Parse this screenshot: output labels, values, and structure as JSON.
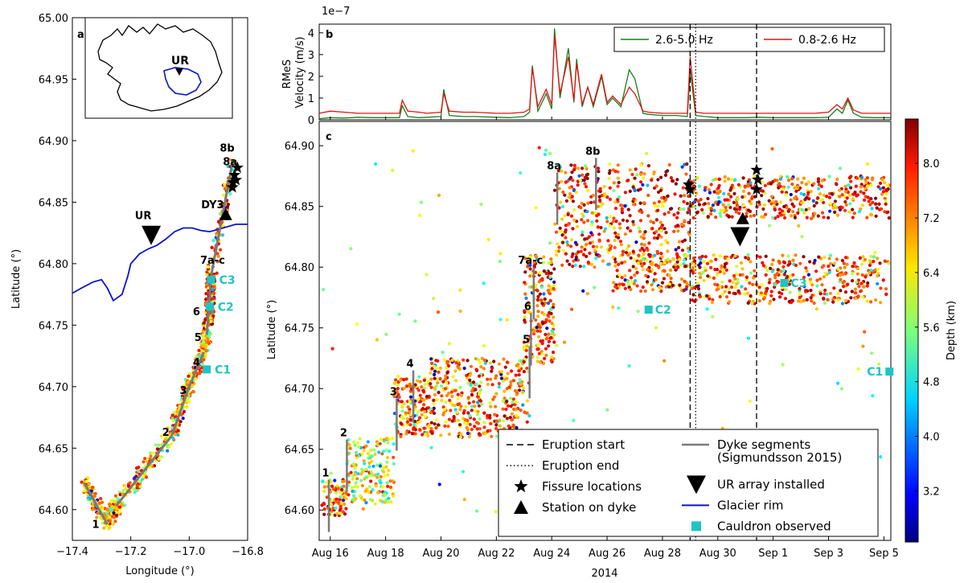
{
  "figure": {
    "colorbar_label": "Depth (km)",
    "colorbar_ticks": [
      "3.2",
      "4.0",
      "4.8",
      "5.6",
      "6.4",
      "7.2",
      "8.0"
    ],
    "colorbar_tick_values": [
      3.2,
      4.0,
      4.8,
      5.6,
      6.4,
      7.2,
      8.0
    ],
    "colorbar_range": [
      2.45,
      8.65
    ]
  },
  "chart_data": [
    {
      "panel": "a",
      "type": "map",
      "xlabel": "Longitude (°)",
      "ylabel": "Latitude (°)",
      "xlim": [
        -17.4,
        -16.8
      ],
      "ylim": [
        64.575,
        65.0
      ],
      "xticks": [
        -17.4,
        -17.2,
        -17.0,
        -16.8
      ],
      "xtick_labels": [
        "−17.4",
        "−17.2",
        "−17.0",
        "−16.8"
      ],
      "yticks": [
        64.6,
        64.65,
        64.7,
        64.75,
        64.8,
        64.85,
        64.9,
        64.95,
        65.0
      ],
      "ytick_labels": [
        "64.60",
        "64.65",
        "64.70",
        "64.75",
        "64.80",
        "64.85",
        "64.90",
        "64.95",
        "65.00"
      ],
      "inset_label": "UR",
      "dyke_segments": [
        [
          [
            -17.36,
            64.622
          ],
          [
            -17.28,
            64.588
          ]
        ],
        [
          [
            -17.25,
            64.603
          ],
          [
            -17.06,
            64.66
          ]
        ],
        [
          [
            -17.06,
            64.66
          ],
          [
            -17.0,
            64.7
          ]
        ],
        [
          [
            -17.0,
            64.7
          ],
          [
            -16.95,
            64.728
          ]
        ],
        [
          [
            -16.94,
            64.742
          ],
          [
            -16.925,
            64.79
          ]
        ],
        [
          [
            -16.925,
            64.79
          ],
          [
            -16.85,
            64.885
          ]
        ]
      ],
      "segment_labels": [
        {
          "text": "1",
          "lon": -17.32,
          "lat": 64.585
        },
        {
          "text": "2",
          "lon": -17.08,
          "lat": 64.66
        },
        {
          "text": "3",
          "lon": -17.02,
          "lat": 64.694
        },
        {
          "text": "4",
          "lon": -16.975,
          "lat": 64.717
        },
        {
          "text": "5",
          "lon": -16.97,
          "lat": 64.737
        },
        {
          "text": "6",
          "lon": -16.975,
          "lat": 64.758
        },
        {
          "text": "7a-c",
          "lon": -16.92,
          "lat": 64.8
        },
        {
          "text": "DY3",
          "lon": -16.92,
          "lat": 64.845
        },
        {
          "text": "8a",
          "lon": -16.86,
          "lat": 64.88
        },
        {
          "text": "8b",
          "lon": -16.87,
          "lat": 64.891
        }
      ],
      "cauldrons": [
        {
          "label": "C1",
          "lon": -16.94,
          "lat": 64.714
        },
        {
          "label": "C2",
          "lon": -16.93,
          "lat": 64.765
        },
        {
          "label": "C3",
          "lon": -16.925,
          "lat": 64.787
        }
      ],
      "ur_array": {
        "label": "UR",
        "lon": -17.13,
        "lat": 64.823
      },
      "station_dy3": {
        "lon": -16.875,
        "lat": 64.84
      },
      "fissures": [
        {
          "lon": -16.835,
          "lat": 64.878
        },
        {
          "lon": -16.845,
          "lat": 64.872
        },
        {
          "lon": -16.85,
          "lat": 64.866
        },
        {
          "lon": -16.84,
          "lat": 64.868
        },
        {
          "lon": -16.852,
          "lat": 64.862
        }
      ],
      "glacier_rim": [
        [
          -17.4,
          64.776
        ],
        [
          -17.37,
          64.78
        ],
        [
          -17.33,
          64.785
        ],
        [
          -17.3,
          64.787
        ],
        [
          -17.28,
          64.78
        ],
        [
          -17.26,
          64.77
        ],
        [
          -17.23,
          64.775
        ],
        [
          -17.21,
          64.79
        ],
        [
          -17.2,
          64.8
        ],
        [
          -17.17,
          64.808
        ],
        [
          -17.14,
          64.812
        ],
        [
          -17.11,
          64.815
        ],
        [
          -17.08,
          64.82
        ],
        [
          -17.05,
          64.826
        ],
        [
          -17.02,
          64.829
        ],
        [
          -16.99,
          64.829
        ],
        [
          -16.96,
          64.827
        ],
        [
          -16.93,
          64.826
        ],
        [
          -16.9,
          64.828
        ],
        [
          -16.87,
          64.83
        ],
        [
          -16.84,
          64.832
        ],
        [
          -16.8,
          64.832
        ]
      ]
    },
    {
      "panel": "b",
      "type": "line",
      "ylabel": "RMeS\nVelocity (m/s)",
      "ylabel_lines": [
        "RMeS",
        "Velocity (m/s)"
      ],
      "scale_label": "1e−7",
      "ylim": [
        0,
        4.4
      ],
      "yticks": [
        0,
        1,
        2,
        3,
        4
      ],
      "xlim": [
        15.6,
        36.25
      ],
      "series": [
        {
          "name": "2.6-5.0 Hz",
          "color": "#1a7f1a",
          "points": [
            [
              15.6,
              0.05
            ],
            [
              16.0,
              0.1
            ],
            [
              16.5,
              0.08
            ],
            [
              17.0,
              0.12
            ],
            [
              17.5,
              0.1
            ],
            [
              18.0,
              0.1
            ],
            [
              18.5,
              0.1
            ],
            [
              18.6,
              0.65
            ],
            [
              18.8,
              0.15
            ],
            [
              19.2,
              0.1
            ],
            [
              19.5,
              0.12
            ],
            [
              20.0,
              0.15
            ],
            [
              20.1,
              1.4
            ],
            [
              20.3,
              0.2
            ],
            [
              20.8,
              0.15
            ],
            [
              21.2,
              0.15
            ],
            [
              22.0,
              0.12
            ],
            [
              22.5,
              0.1
            ],
            [
              23.0,
              0.15
            ],
            [
              23.2,
              0.35
            ],
            [
              23.3,
              2.5
            ],
            [
              23.5,
              0.4
            ],
            [
              23.8,
              1.2
            ],
            [
              24.0,
              0.5
            ],
            [
              24.1,
              4.2
            ],
            [
              24.3,
              1.0
            ],
            [
              24.6,
              3.3
            ],
            [
              24.8,
              0.8
            ],
            [
              24.9,
              2.8
            ],
            [
              25.1,
              0.6
            ],
            [
              25.3,
              1.5
            ],
            [
              25.5,
              0.6
            ],
            [
              25.8,
              2.0
            ],
            [
              26.0,
              0.7
            ],
            [
              26.2,
              1.0
            ],
            [
              26.5,
              0.6
            ],
            [
              26.8,
              2.3
            ],
            [
              27.0,
              1.9
            ],
            [
              27.3,
              0.3
            ],
            [
              27.5,
              0.25
            ],
            [
              28.0,
              0.2
            ],
            [
              28.5,
              0.2
            ],
            [
              28.9,
              0.15
            ],
            [
              29.0,
              2.3
            ],
            [
              29.2,
              0.2
            ],
            [
              29.5,
              0.15
            ],
            [
              30.0,
              0.1
            ],
            [
              30.5,
              0.1
            ],
            [
              31.0,
              0.1
            ],
            [
              31.5,
              0.12
            ],
            [
              32.0,
              0.1
            ],
            [
              32.5,
              0.1
            ],
            [
              33.0,
              0.1
            ],
            [
              33.5,
              0.1
            ],
            [
              34.0,
              0.12
            ],
            [
              34.3,
              0.5
            ],
            [
              34.5,
              0.3
            ],
            [
              34.7,
              0.9
            ],
            [
              34.9,
              0.3
            ],
            [
              35.2,
              0.12
            ],
            [
              35.6,
              0.1
            ],
            [
              36.25,
              0.1
            ]
          ]
        },
        {
          "name": "0.8-2.6 Hz",
          "color": "#e01414",
          "points": [
            [
              15.6,
              0.3
            ],
            [
              16.0,
              0.4
            ],
            [
              16.5,
              0.35
            ],
            [
              17.0,
              0.3
            ],
            [
              17.5,
              0.3
            ],
            [
              18.0,
              0.3
            ],
            [
              18.5,
              0.3
            ],
            [
              18.6,
              0.9
            ],
            [
              18.8,
              0.4
            ],
            [
              19.2,
              0.35
            ],
            [
              19.5,
              0.3
            ],
            [
              20.0,
              0.35
            ],
            [
              20.1,
              1.2
            ],
            [
              20.3,
              0.4
            ],
            [
              20.8,
              0.35
            ],
            [
              21.2,
              0.35
            ],
            [
              22.0,
              0.3
            ],
            [
              22.5,
              0.3
            ],
            [
              23.0,
              0.35
            ],
            [
              23.2,
              0.5
            ],
            [
              23.3,
              2.4
            ],
            [
              23.5,
              0.6
            ],
            [
              23.8,
              1.4
            ],
            [
              24.0,
              0.7
            ],
            [
              24.1,
              3.9
            ],
            [
              24.3,
              1.2
            ],
            [
              24.6,
              2.9
            ],
            [
              24.8,
              0.9
            ],
            [
              24.9,
              2.6
            ],
            [
              25.1,
              0.7
            ],
            [
              25.3,
              1.5
            ],
            [
              25.5,
              0.7
            ],
            [
              25.8,
              2.1
            ],
            [
              26.0,
              0.8
            ],
            [
              26.2,
              1.1
            ],
            [
              26.5,
              0.7
            ],
            [
              26.8,
              1.5
            ],
            [
              27.0,
              1.2
            ],
            [
              27.3,
              0.4
            ],
            [
              27.5,
              0.35
            ],
            [
              28.0,
              0.3
            ],
            [
              28.5,
              0.3
            ],
            [
              28.9,
              0.3
            ],
            [
              29.0,
              2.9
            ],
            [
              29.2,
              0.35
            ],
            [
              29.5,
              0.3
            ],
            [
              30.0,
              0.3
            ],
            [
              30.5,
              0.3
            ],
            [
              31.0,
              0.3
            ],
            [
              31.5,
              0.3
            ],
            [
              32.0,
              0.3
            ],
            [
              32.5,
              0.3
            ],
            [
              33.0,
              0.3
            ],
            [
              33.5,
              0.3
            ],
            [
              34.0,
              0.35
            ],
            [
              34.3,
              0.7
            ],
            [
              34.5,
              0.5
            ],
            [
              34.7,
              1.0
            ],
            [
              34.9,
              0.45
            ],
            [
              35.2,
              0.3
            ],
            [
              35.6,
              0.3
            ],
            [
              36.25,
              0.3
            ]
          ]
        }
      ]
    },
    {
      "panel": "c",
      "type": "scatter",
      "xlabel": "2014",
      "ylabel": "Latitude (°)",
      "xlim": [
        15.6,
        36.25
      ],
      "ylim": [
        64.575,
        64.92
      ],
      "xticks": [
        16,
        18,
        20,
        22,
        24,
        26,
        28,
        30,
        32,
        34,
        36
      ],
      "xtick_labels": [
        "Aug 16",
        "Aug 18",
        "Aug 20",
        "Aug 22",
        "Aug 24",
        "Aug 26",
        "Aug 28",
        "Aug 30",
        "Sep 1",
        "Sep 3",
        "Sep 5"
      ],
      "yticks": [
        64.6,
        64.65,
        64.7,
        64.75,
        64.8,
        64.85,
        64.9
      ],
      "ytick_labels": [
        "64.60",
        "64.65",
        "64.70",
        "64.75",
        "64.80",
        "64.85",
        "64.90"
      ],
      "eruption_start": [
        29.0,
        31.4
      ],
      "eruption_end": [
        29.2
      ],
      "dyke_segments": [
        {
          "label": "1",
          "day": 15.95,
          "lat_top": 64.625
        },
        {
          "label": "2",
          "day": 16.6,
          "lat_top": 64.658
        },
        {
          "label": "3",
          "day": 18.4,
          "lat_top": 64.692
        },
        {
          "label": "4",
          "day": 19.0,
          "lat_top": 64.715
        },
        {
          "label": "5",
          "day": 23.2,
          "lat_top": 64.735
        },
        {
          "label": "6",
          "day": 23.25,
          "lat_top": 64.762
        },
        {
          "label": "7a-c",
          "day": 23.35,
          "lat_top": 64.8
        },
        {
          "label": "8a",
          "day": 24.2,
          "lat_top": 64.878
        },
        {
          "label": "8b",
          "day": 25.6,
          "lat_top": 64.89
        }
      ],
      "cauldrons": [
        {
          "label": "C1",
          "day": 36.2,
          "lat": 64.714
        },
        {
          "label": "C2",
          "day": 27.5,
          "lat": 64.765
        },
        {
          "label": "C3",
          "day": 32.4,
          "lat": 64.787
        }
      ],
      "ur_array": {
        "day": 30.8,
        "lat": 64.825
      },
      "station_dy3": {
        "day": 30.9,
        "lat": 64.84
      },
      "fissures": [
        {
          "day": 28.95,
          "lat": 64.868
        },
        {
          "day": 29.0,
          "lat": 64.864
        },
        {
          "day": 31.4,
          "lat": 64.88
        },
        {
          "day": 31.45,
          "lat": 64.872
        },
        {
          "day": 31.4,
          "lat": 64.864
        }
      ],
      "seismicity_clusters": [
        {
          "d0": 15.7,
          "d1": 16.6,
          "lat0": 64.595,
          "lat1": 64.625,
          "n": 90,
          "depth": 7.0
        },
        {
          "d0": 16.6,
          "d1": 18.3,
          "lat0": 64.605,
          "lat1": 64.66,
          "n": 170,
          "depth": 6.3
        },
        {
          "d0": 18.3,
          "d1": 19.6,
          "lat0": 64.66,
          "lat1": 64.71,
          "n": 160,
          "depth": 7.2
        },
        {
          "d0": 19.6,
          "d1": 23.2,
          "lat0": 64.66,
          "lat1": 64.725,
          "n": 380,
          "depth": 7.3
        },
        {
          "d0": 23.0,
          "d1": 24.1,
          "lat0": 64.72,
          "lat1": 64.81,
          "n": 200,
          "depth": 7.4
        },
        {
          "d0": 24.1,
          "d1": 29.0,
          "lat0": 64.8,
          "lat1": 64.885,
          "n": 480,
          "depth": 7.6
        },
        {
          "d0": 26.2,
          "d1": 29.0,
          "lat0": 64.78,
          "lat1": 64.81,
          "n": 120,
          "depth": 7.3
        },
        {
          "d0": 29.0,
          "d1": 36.25,
          "lat0": 64.84,
          "lat1": 64.875,
          "n": 420,
          "depth": 7.6
        },
        {
          "d0": 29.0,
          "d1": 36.25,
          "lat0": 64.77,
          "lat1": 64.81,
          "n": 420,
          "depth": 7.4
        },
        {
          "d0": 15.7,
          "d1": 36.2,
          "lat0": 64.58,
          "lat1": 64.9,
          "n": 120,
          "depth": 6.0
        }
      ],
      "legend": [
        {
          "symbol": "dash",
          "label": "Eruption start"
        },
        {
          "symbol": "dotted",
          "label": "Eruption end"
        },
        {
          "symbol": "star",
          "label": "Fissure locations"
        },
        {
          "symbol": "triangle",
          "label": "Station on dyke"
        },
        {
          "symbol": "grayline",
          "label": "Dyke segments"
        },
        {
          "symbol": "none",
          "label": "(Sigmundsson 2015)"
        },
        {
          "symbol": "downtriangle",
          "label": "UR array installed"
        },
        {
          "symbol": "blueline",
          "label": "Glacier rim"
        },
        {
          "symbol": "cyansquare",
          "label": "Cauldron observed"
        }
      ]
    }
  ]
}
